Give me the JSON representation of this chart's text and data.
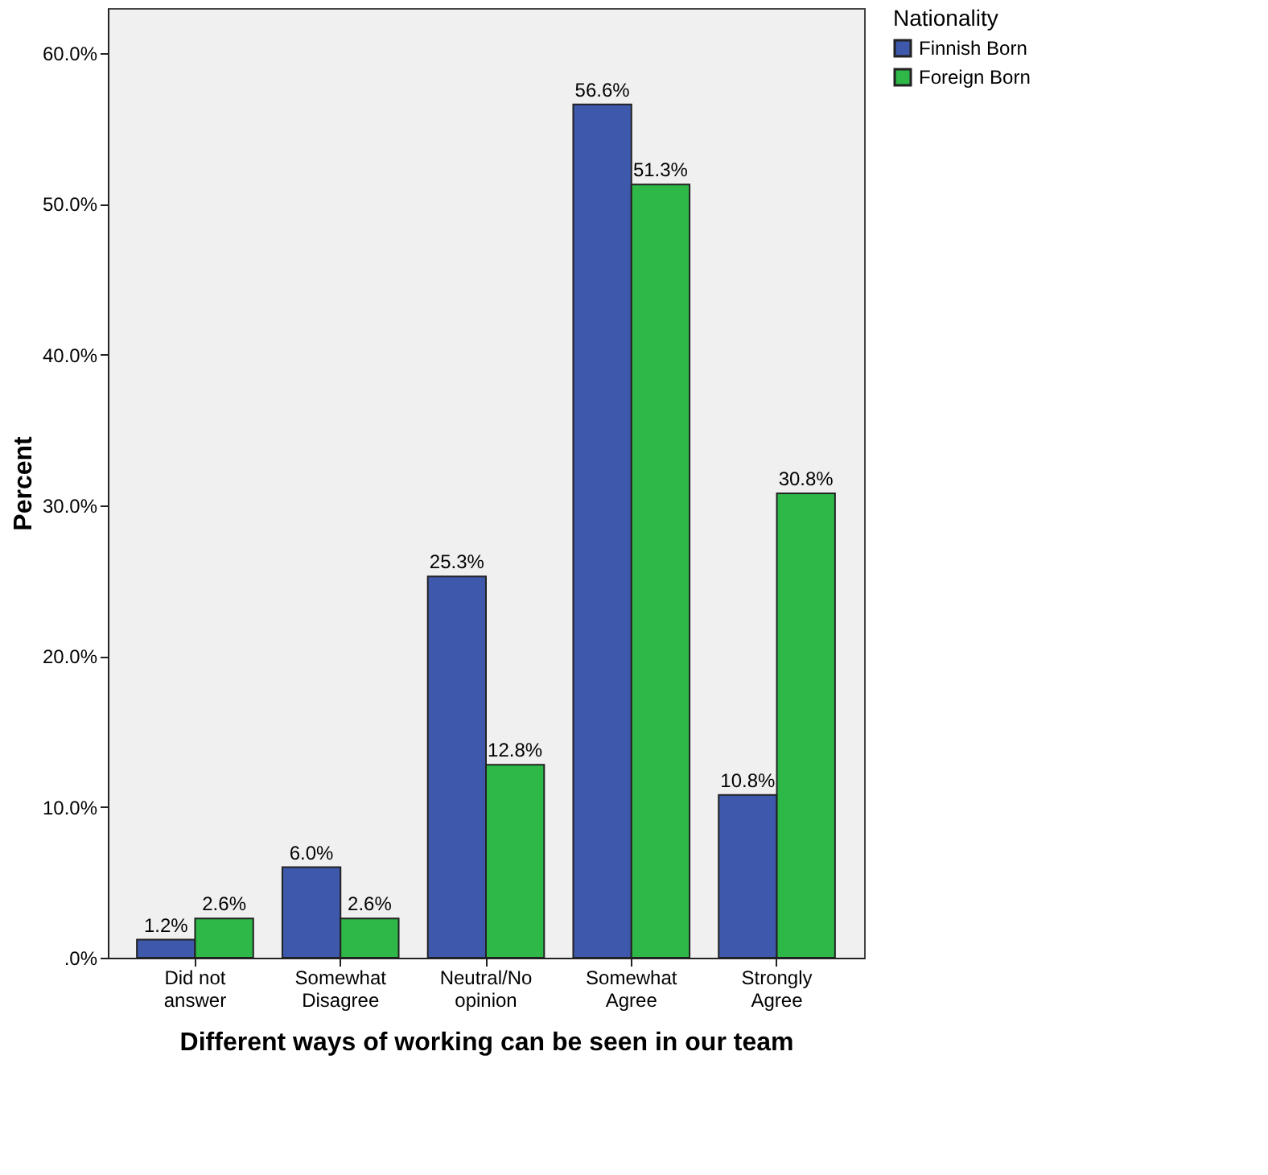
{
  "chart_data": {
    "type": "bar",
    "xlabel": "Different ways of working can be seen in our team",
    "ylabel": "Percent",
    "legend_title": "Nationality",
    "categories": [
      "Did not answer",
      "Somewhat Disagree",
      "Neutral/No opinion",
      "Somewhat Agree",
      "Strongly Agree"
    ],
    "series": [
      {
        "name": "Finnish Born",
        "color": "#3e58ac",
        "values": [
          1.2,
          6.0,
          25.3,
          56.6,
          10.8
        ],
        "value_labels": [
          "1.2%",
          "6.0%",
          "25.3%",
          "56.6%",
          "10.8%"
        ]
      },
      {
        "name": "Foreign Born",
        "color": "#2eb848",
        "values": [
          2.6,
          2.6,
          12.8,
          51.3,
          30.8
        ],
        "value_labels": [
          "2.6%",
          "2.6%",
          "12.8%",
          "51.3%",
          "30.8%"
        ]
      }
    ],
    "ylim": [
      0,
      63
    ],
    "yticks": [
      {
        "value": 0,
        "label": ".0%"
      },
      {
        "value": 10,
        "label": "10.0%"
      },
      {
        "value": 20,
        "label": "20.0%"
      },
      {
        "value": 30,
        "label": "30.0%"
      },
      {
        "value": 40,
        "label": "40.0%"
      },
      {
        "value": 50,
        "label": "50.0%"
      },
      {
        "value": 60,
        "label": "60.0%"
      }
    ],
    "grid": false,
    "legend": "top right"
  }
}
